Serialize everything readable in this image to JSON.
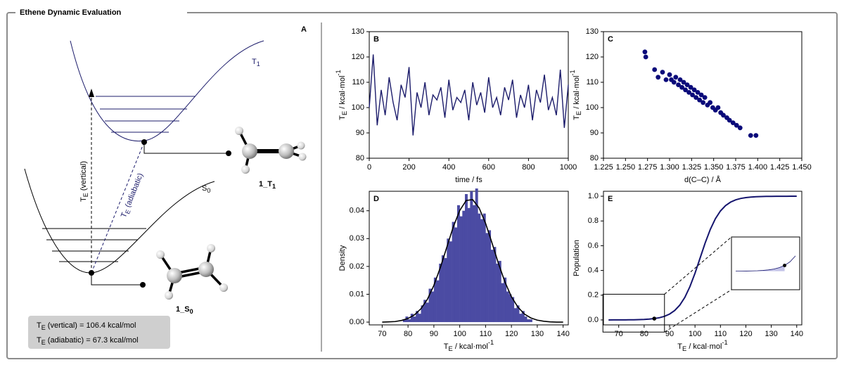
{
  "header": {
    "title": "Ethene Dynamic Evaluation"
  },
  "panel_a": {
    "label": "A",
    "t1": {
      "base": "T",
      "sub": "1"
    },
    "s0": {
      "base": "S",
      "sub": "0"
    },
    "vertical": {
      "base": "T",
      "sub": "E",
      "rest": " (vertical)"
    },
    "adiabatic": {
      "base": "T",
      "sub": "E",
      "rest": " (adiabatic)"
    },
    "mol_t1": {
      "base": "1_T",
      "sub": "1"
    },
    "mol_s0": {
      "base": "1_S",
      "sub": "0"
    },
    "results": [
      {
        "base": "T",
        "sub": "E",
        "rest": " (vertical) = 106.4 kcal/mol"
      },
      {
        "base": "T",
        "sub": "E",
        "rest": " (adiabatic) = 67.3 kcal/mol"
      }
    ]
  },
  "chart_data": [
    {
      "type": "line",
      "label": "B",
      "xlabel": "time / fs",
      "ylabel": {
        "base": "T",
        "sub": "E",
        "unit": " / kcal·mol",
        "sup": "-1"
      },
      "x": [
        0,
        20,
        40,
        60,
        80,
        100,
        120,
        140,
        160,
        180,
        200,
        220,
        240,
        260,
        280,
        300,
        320,
        340,
        360,
        380,
        400,
        420,
        440,
        460,
        480,
        500,
        520,
        540,
        560,
        580,
        600,
        620,
        640,
        660,
        680,
        700,
        720,
        740,
        760,
        780,
        800,
        820,
        840,
        860,
        880,
        900,
        920,
        940,
        960,
        980,
        1000
      ],
      "values": [
        100,
        121,
        93,
        107,
        97,
        112,
        102,
        95,
        109,
        104,
        116,
        89,
        106,
        100,
        110,
        97,
        105,
        103,
        108,
        96,
        111,
        99,
        104,
        102,
        107,
        95,
        110,
        101,
        106,
        98,
        112,
        100,
        104,
        97,
        108,
        103,
        111,
        96,
        105,
        100,
        109,
        95,
        107,
        102,
        113,
        99,
        104,
        97,
        115,
        92,
        109
      ],
      "color": "#1c1c6b",
      "xlim": [
        0,
        1000
      ],
      "xticks": [
        0,
        200,
        400,
        600,
        800,
        1000
      ],
      "ylim": [
        80,
        130
      ],
      "yticks": [
        80,
        90,
        100,
        110,
        120,
        130
      ]
    },
    {
      "type": "scatter",
      "label": "C",
      "xlabel": "d(C–C) / Å",
      "ylabel": {
        "base": "T",
        "sub": "E",
        "unit": " / kcal·mol",
        "sup": "-1"
      },
      "x": [
        1.272,
        1.273,
        1.283,
        1.287,
        1.292,
        1.296,
        1.3,
        1.302,
        1.305,
        1.307,
        1.31,
        1.312,
        1.314,
        1.316,
        1.318,
        1.32,
        1.322,
        1.324,
        1.326,
        1.328,
        1.33,
        1.332,
        1.334,
        1.336,
        1.338,
        1.34,
        1.343,
        1.346,
        1.349,
        1.352,
        1.355,
        1.358,
        1.361,
        1.365,
        1.368,
        1.372,
        1.376,
        1.38,
        1.392,
        1.398
      ],
      "values": [
        122,
        120,
        115,
        112,
        114,
        111,
        113,
        111,
        110,
        112,
        109,
        111,
        108,
        110,
        107,
        109,
        106,
        108,
        105,
        107,
        104,
        106,
        103,
        105,
        102,
        104,
        101,
        102,
        100,
        99,
        100,
        98,
        97,
        96,
        95,
        94,
        93,
        92,
        89,
        89
      ],
      "color": "#0a0a7a",
      "xlim": [
        1.225,
        1.45
      ],
      "xticks": [
        1.225,
        {
          "value": 1.25,
          "label": "1.250"
        },
        1.275,
        {
          "value": 1.3,
          "label": "1.300"
        },
        1.325,
        {
          "value": 1.35,
          "label": "1.350"
        },
        1.375,
        {
          "value": 1.4,
          "label": "1.400"
        },
        1.425,
        {
          "value": 1.45,
          "label": "1.450"
        }
      ],
      "ylim": [
        80,
        130
      ],
      "yticks": [
        80,
        90,
        100,
        110,
        120,
        130
      ]
    },
    {
      "type": "histogram",
      "label": "D",
      "xlabel": {
        "base": "T",
        "sub": "E",
        "unit": " / kcal·mol",
        "sup": "-1"
      },
      "ylabel": "Density",
      "bins": [
        78,
        79,
        80,
        81,
        82,
        83,
        84,
        85,
        86,
        87,
        88,
        89,
        90,
        91,
        92,
        93,
        94,
        95,
        96,
        97,
        98,
        99,
        100,
        101,
        102,
        103,
        104,
        105,
        106,
        107,
        108,
        109,
        110,
        111,
        112,
        113,
        114,
        115,
        116,
        117,
        118,
        119,
        120,
        121,
        122,
        123,
        124,
        125,
        126,
        127,
        128
      ],
      "values": [
        0.001,
        0.002,
        0.001,
        0.003,
        0.002,
        0.004,
        0.003,
        0.006,
        0.008,
        0.007,
        0.012,
        0.011,
        0.016,
        0.015,
        0.021,
        0.024,
        0.023,
        0.03,
        0.029,
        0.036,
        0.034,
        0.042,
        0.038,
        0.04,
        0.046,
        0.041,
        0.047,
        0.042,
        0.048,
        0.039,
        0.037,
        0.039,
        0.032,
        0.033,
        0.026,
        0.027,
        0.021,
        0.022,
        0.014,
        0.016,
        0.011,
        0.01,
        0.009,
        0.005,
        0.006,
        0.003,
        0.004,
        0.002,
        0.001,
        0.001
      ],
      "color": "#4b4ba3",
      "fit": {
        "x": [
          70,
          72.5,
          75,
          77.5,
          80,
          82.5,
          85,
          87.5,
          90,
          92.5,
          95,
          97.5,
          100,
          102.5,
          105,
          107.5,
          110,
          112.5,
          115,
          117.5,
          120,
          122.5,
          125,
          127.5,
          130,
          132.5,
          135,
          137.5,
          140
        ],
        "values": [
          0,
          0.0001,
          0.0002,
          0.0006,
          0.0013,
          0.0026,
          0.0048,
          0.0082,
          0.0132,
          0.0196,
          0.0269,
          0.0342,
          0.0401,
          0.0437,
          0.044,
          0.041,
          0.0355,
          0.0284,
          0.021,
          0.0144,
          0.0091,
          0.0054,
          0.0029,
          0.0015,
          0.0007,
          0.0003,
          0.0001,
          0,
          0
        ],
        "color": "#000000"
      },
      "xlim": [
        65,
        142
      ],
      "xticks": [
        70,
        80,
        90,
        100,
        110,
        120,
        130,
        140
      ],
      "ylim": [
        -0.001,
        0.047
      ],
      "yticks": [
        {
          "value": 0,
          "label": "0.00"
        },
        0.01,
        0.02,
        0.03,
        0.04
      ]
    },
    {
      "type": "line",
      "label": "E",
      "xlabel": {
        "base": "T",
        "sub": "E",
        "unit": " / kcal·mol",
        "sup": "-1"
      },
      "ylabel": "Population",
      "x": [
        66,
        68,
        70,
        72,
        74,
        76,
        78,
        80,
        82,
        84,
        86,
        88,
        90,
        92,
        94,
        96,
        98,
        100,
        102,
        104,
        106,
        108,
        110,
        112,
        114,
        116,
        118,
        120,
        122,
        124,
        126,
        128,
        130,
        132,
        134,
        136,
        138,
        140
      ],
      "values": [
        0.0001,
        0.0002,
        0.0003,
        0.0006,
        0.0009,
        0.0015,
        0.0025,
        0.0041,
        0.0067,
        0.011,
        0.018,
        0.0293,
        0.0474,
        0.0759,
        0.1192,
        0.1824,
        0.2689,
        0.3775,
        0.5,
        0.6225,
        0.7311,
        0.8176,
        0.8808,
        0.9241,
        0.9526,
        0.9707,
        0.982,
        0.989,
        0.9933,
        0.9959,
        0.9975,
        0.9985,
        0.9991,
        0.9994,
        0.9997,
        0.9998,
        0.9999,
        0.9999
      ],
      "color": "#15156e",
      "marker": {
        "x": 84,
        "y": 0.011
      },
      "inset": {
        "xlim": [
          66,
          88
        ],
        "ylim": [
          -0.03,
          0.06
        ],
        "fill": "#c4c4e8"
      },
      "xlim": [
        64,
        142
      ],
      "xticks": [
        70,
        80,
        90,
        100,
        110,
        120,
        130,
        140
      ],
      "ylim": [
        -0.04,
        1.04
      ],
      "yticks": [
        {
          "value": 0,
          "label": "0.0"
        },
        0.2,
        0.4,
        0.6,
        0.8,
        {
          "value": 1,
          "label": "1.0"
        }
      ]
    }
  ]
}
